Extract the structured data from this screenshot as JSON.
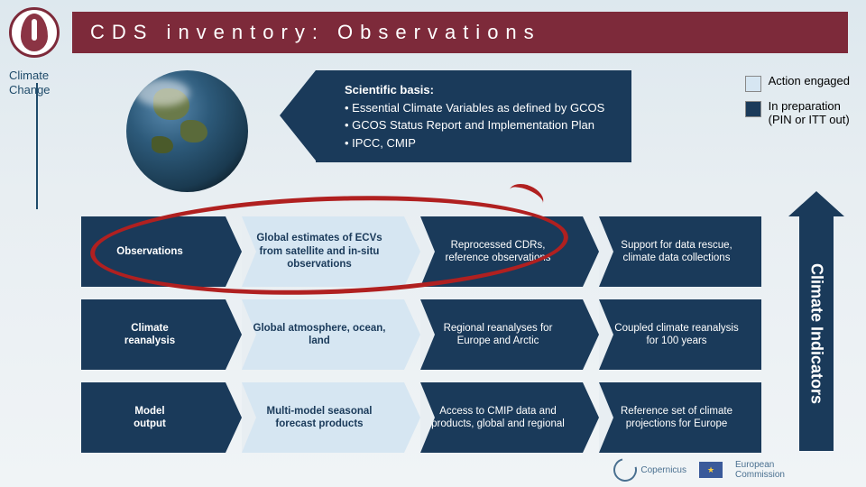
{
  "header": {
    "title": "CDS inventory: Observations"
  },
  "climate_change_label": "Climate\nChange",
  "scientific_basis": {
    "heading": "Scientific basis:",
    "bullets": [
      "Essential Climate Variables as defined by GCOS",
      "GCOS Status Report and Implementation Plan",
      "IPCC, CMIP"
    ],
    "panel_bg": "#1a3a5a",
    "panel_fg": "#ffffff"
  },
  "legend": {
    "items": [
      {
        "color": "#d6e6f2",
        "label": "Action engaged"
      },
      {
        "color": "#1a3a5a",
        "label": "In preparation\n(PIN or ITT out)"
      }
    ]
  },
  "rows": [
    {
      "label": "Observations",
      "cells": [
        {
          "text": "Global estimates of ECVs from satellite and in-situ observations",
          "style": "light"
        },
        {
          "text": "Reprocessed CDRs, reference observations",
          "style": "dark"
        },
        {
          "text": "Support for data rescue, climate data collections",
          "style": "dark"
        }
      ]
    },
    {
      "label": "Climate\nreanalysis",
      "cells": [
        {
          "text": "Global atmosphere, ocean, land",
          "style": "light"
        },
        {
          "text": "Regional reanalyses for Europe and Arctic",
          "style": "dark"
        },
        {
          "text": "Coupled climate reanalysis for 100 years",
          "style": "dark"
        }
      ]
    },
    {
      "label": "Model\noutput",
      "cells": [
        {
          "text": "Multi-model seasonal forecast products",
          "style": "light"
        },
        {
          "text": "Access to CMIP data and products, global and regional",
          "style": "dark"
        },
        {
          "text": "Reference set of climate projections for Europe",
          "style": "dark"
        }
      ]
    }
  ],
  "side_arrow_label": "Climate Indicators",
  "colors": {
    "header_bg": "#7d2a3a",
    "chev_dark_bg": "#1a3a5a",
    "chev_light_bg": "#d6e6f2",
    "page_bg_top": "#dde8ee",
    "circle_red": "#b02020",
    "cc_text": "#1f4b6a"
  },
  "footer": {
    "copernicus": "Copernicus",
    "ec": "European\nCommission"
  }
}
